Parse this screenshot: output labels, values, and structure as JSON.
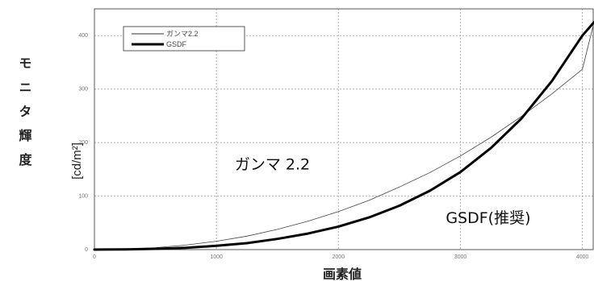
{
  "chart_data": {
    "type": "line",
    "title": "",
    "xlabel": "画素値",
    "ylabel": "モニタ輝度",
    "ylabel_unit": "[cd/m²]",
    "xlim": [
      0,
      4095
    ],
    "ylim": [
      0,
      450
    ],
    "x_ticks": [
      0,
      1000,
      2000,
      3000,
      4000
    ],
    "x_tick_labels": [
      "0",
      "1000",
      "2000",
      "3000",
      "4000"
    ],
    "y_ticks": [
      0,
      100,
      200,
      300,
      400
    ],
    "y_tick_labels": [
      "0",
      "100",
      "200",
      "300",
      "400"
    ],
    "grid": true,
    "legend_position": "top-left",
    "series": [
      {
        "name": "ガンマ2.2",
        "style": "thin",
        "x": [
          0,
          250,
          500,
          750,
          1000,
          1250,
          1500,
          1750,
          2000,
          2250,
          2500,
          2750,
          3000,
          3250,
          3500,
          3750,
          4000,
          4095
        ],
        "y": [
          0.1,
          0.9,
          3.6,
          8.4,
          15.7,
          25.2,
          37.8,
          53,
          71,
          92,
          117,
          144,
          175,
          210,
          249,
          291,
          337,
          425
        ]
      },
      {
        "name": "GSDF",
        "style": "thick",
        "x": [
          0,
          250,
          500,
          750,
          1000,
          1250,
          1500,
          1750,
          2000,
          2250,
          2500,
          2750,
          3000,
          3250,
          3500,
          3750,
          4000,
          4095
        ],
        "y": [
          0.05,
          0.5,
          1.5,
          3.5,
          7,
          12,
          20,
          30,
          43,
          60,
          82,
          110,
          145,
          190,
          245,
          315,
          400,
          425
        ]
      }
    ],
    "annotations": [
      {
        "text": "ガンマ 2.2",
        "x": 1150,
        "y": 150
      },
      {
        "text": "GSDF(推奨)",
        "x": 2880,
        "y": 50
      }
    ]
  }
}
